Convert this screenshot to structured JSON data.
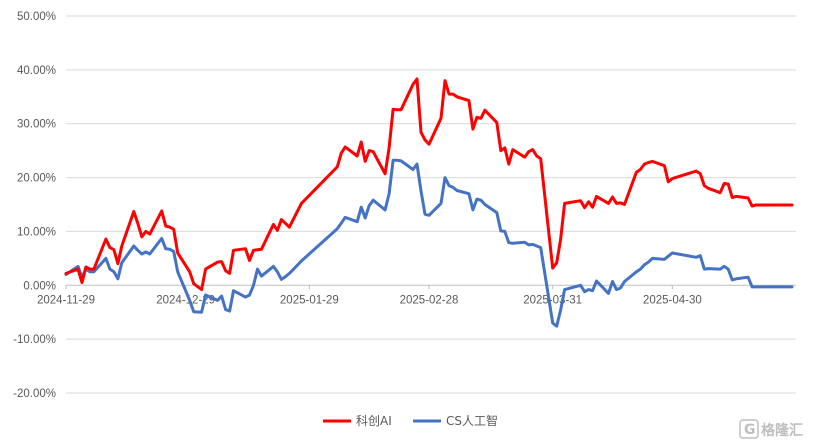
{
  "chart_data": {
    "type": "line",
    "title": "",
    "xlabel": "",
    "ylabel": "",
    "ylim": [
      -0.2,
      0.5
    ],
    "y_ticks": [
      "50.00%",
      "40.00%",
      "30.00%",
      "20.00%",
      "10.00%",
      "0.00%",
      "-10.00%",
      "-20.00%"
    ],
    "x_tick_labels": [
      "2024-11-29",
      "2024-12-29",
      "2025-01-29",
      "2025-02-28",
      "2025-03-31",
      "2025-04-30"
    ],
    "x_start": "2024-11-29",
    "x_end": "2025-05-31",
    "grid": "horizontal",
    "legend_position": "bottom",
    "series": [
      {
        "name": "科创AI",
        "color": "#ff0000",
        "x": [
          "2024-11-29",
          "2024-12-02",
          "2024-12-03",
          "2024-12-04",
          "2024-12-05",
          "2024-12-06",
          "2024-12-09",
          "2024-12-10",
          "2024-12-11",
          "2024-12-12",
          "2024-12-13",
          "2024-12-16",
          "2024-12-17",
          "2024-12-18",
          "2024-12-19",
          "2024-12-20",
          "2024-12-23",
          "2024-12-24",
          "2024-12-25",
          "2024-12-26",
          "2024-12-27",
          "2024-12-30",
          "2024-12-31",
          "2025-01-02",
          "2025-01-03",
          "2025-01-06",
          "2025-01-07",
          "2025-01-08",
          "2025-01-09",
          "2025-01-10",
          "2025-01-13",
          "2025-01-14",
          "2025-01-15",
          "2025-01-16",
          "2025-01-17",
          "2025-01-20",
          "2025-01-21",
          "2025-01-22",
          "2025-01-23",
          "2025-01-24",
          "2025-01-27",
          "2025-02-05",
          "2025-02-06",
          "2025-02-07",
          "2025-02-10",
          "2025-02-11",
          "2025-02-12",
          "2025-02-13",
          "2025-02-14",
          "2025-02-17",
          "2025-02-18",
          "2025-02-19",
          "2025-02-20",
          "2025-02-21",
          "2025-02-24",
          "2025-02-25",
          "2025-02-26",
          "2025-02-27",
          "2025-02-28",
          "2025-03-03",
          "2025-03-04",
          "2025-03-05",
          "2025-03-06",
          "2025-03-07",
          "2025-03-10",
          "2025-03-11",
          "2025-03-12",
          "2025-03-13",
          "2025-03-14",
          "2025-03-17",
          "2025-03-18",
          "2025-03-19",
          "2025-03-20",
          "2025-03-21",
          "2025-03-24",
          "2025-03-25",
          "2025-03-26",
          "2025-03-27",
          "2025-03-28",
          "2025-03-31",
          "2025-04-01",
          "2025-04-02",
          "2025-04-03",
          "2025-04-07",
          "2025-04-08",
          "2025-04-09",
          "2025-04-10",
          "2025-04-11",
          "2025-04-14",
          "2025-04-15",
          "2025-04-16",
          "2025-04-17",
          "2025-04-18",
          "2025-04-21",
          "2025-04-22",
          "2025-04-23",
          "2025-04-24",
          "2025-04-25",
          "2025-04-28",
          "2025-04-29",
          "2025-04-30",
          "2025-05-06",
          "2025-05-07",
          "2025-05-08",
          "2025-05-09",
          "2025-05-12",
          "2025-05-13",
          "2025-05-14",
          "2025-05-15",
          "2025-05-16",
          "2025-05-19",
          "2025-05-20",
          "2025-05-21",
          "2025-05-22",
          "2025-05-23",
          "2025-05-26",
          "2025-05-27",
          "2025-05-28",
          "2025-05-29",
          "2025-05-30"
        ],
        "y": [
          0.022,
          0.03,
          0.005,
          0.034,
          0.03,
          0.03,
          0.086,
          0.07,
          0.066,
          0.04,
          0.073,
          0.137,
          0.115,
          0.09,
          0.1,
          0.095,
          0.138,
          0.11,
          0.108,
          0.104,
          0.06,
          0.025,
          0.003,
          -0.008,
          0.03,
          0.043,
          0.044,
          0.027,
          0.022,
          0.065,
          0.068,
          0.046,
          0.065,
          0.066,
          0.067,
          0.113,
          0.102,
          0.122,
          0.115,
          0.108,
          0.152,
          0.22,
          0.245,
          0.257,
          0.24,
          0.266,
          0.23,
          0.25,
          0.248,
          0.207,
          0.255,
          0.327,
          0.326,
          0.326,
          0.373,
          0.383,
          0.284,
          0.27,
          0.262,
          0.31,
          0.38,
          0.355,
          0.355,
          0.35,
          0.343,
          0.29,
          0.312,
          0.31,
          0.325,
          0.302,
          0.25,
          0.255,
          0.225,
          0.252,
          0.238,
          0.248,
          0.252,
          0.24,
          0.235,
          0.032,
          0.042,
          0.085,
          0.152,
          0.157,
          0.144,
          0.155,
          0.145,
          0.165,
          0.152,
          0.164,
          0.152,
          0.153,
          0.15,
          0.21,
          0.215,
          0.225,
          0.228,
          0.23,
          0.222,
          0.192,
          0.198,
          0.212,
          0.207,
          0.185,
          0.18,
          0.172,
          0.189,
          0.188,
          0.163,
          0.165,
          0.162,
          0.147,
          0.149,
          0.149,
          0.149,
          0.149,
          0.149,
          0.149,
          0.149,
          0.149
        ],
        "note": ""
      },
      {
        "name": "CS人工智",
        "color": "#4472c4",
        "x": [
          "2024-11-29",
          "2024-12-02",
          "2024-12-03",
          "2024-12-04",
          "2024-12-05",
          "2024-12-06",
          "2024-12-09",
          "2024-12-10",
          "2024-12-11",
          "2024-12-12",
          "2024-12-13",
          "2024-12-16",
          "2024-12-17",
          "2024-12-18",
          "2024-12-19",
          "2024-12-20",
          "2024-12-23",
          "2024-12-24",
          "2024-12-25",
          "2024-12-26",
          "2024-12-27",
          "2024-12-30",
          "2024-12-31",
          "2025-01-02",
          "2025-01-03",
          "2025-01-06",
          "2025-01-07",
          "2025-01-08",
          "2025-01-09",
          "2025-01-10",
          "2025-01-13",
          "2025-01-14",
          "2025-01-15",
          "2025-01-16",
          "2025-01-17",
          "2025-01-20",
          "2025-01-21",
          "2025-01-22",
          "2025-01-23",
          "2025-01-24",
          "2025-01-27",
          "2025-02-05",
          "2025-02-06",
          "2025-02-07",
          "2025-02-10",
          "2025-02-11",
          "2025-02-12",
          "2025-02-13",
          "2025-02-14",
          "2025-02-17",
          "2025-02-18",
          "2025-02-19",
          "2025-02-20",
          "2025-02-21",
          "2025-02-24",
          "2025-02-25",
          "2025-02-26",
          "2025-02-27",
          "2025-02-28",
          "2025-03-03",
          "2025-03-04",
          "2025-03-05",
          "2025-03-06",
          "2025-03-07",
          "2025-03-10",
          "2025-03-11",
          "2025-03-12",
          "2025-03-13",
          "2025-03-14",
          "2025-03-17",
          "2025-03-18",
          "2025-03-19",
          "2025-03-20",
          "2025-03-21",
          "2025-03-24",
          "2025-03-25",
          "2025-03-26",
          "2025-03-27",
          "2025-03-28",
          "2025-03-31",
          "2025-04-01",
          "2025-04-02",
          "2025-04-03",
          "2025-04-07",
          "2025-04-08",
          "2025-04-09",
          "2025-04-10",
          "2025-04-11",
          "2025-04-14",
          "2025-04-15",
          "2025-04-16",
          "2025-04-17",
          "2025-04-18",
          "2025-04-21",
          "2025-04-22",
          "2025-04-23",
          "2025-04-24",
          "2025-04-25",
          "2025-04-28",
          "2025-04-29",
          "2025-04-30",
          "2025-05-06",
          "2025-05-07",
          "2025-05-08",
          "2025-05-09",
          "2025-05-12",
          "2025-05-13",
          "2025-05-14",
          "2025-05-15",
          "2025-05-16",
          "2025-05-19",
          "2025-05-20",
          "2025-05-21",
          "2025-05-22",
          "2025-05-23",
          "2025-05-26",
          "2025-05-27",
          "2025-05-28",
          "2025-05-29",
          "2025-05-30"
        ],
        "y": [
          0.02,
          0.035,
          0.015,
          0.03,
          0.025,
          0.025,
          0.05,
          0.03,
          0.025,
          0.012,
          0.042,
          0.073,
          0.065,
          0.058,
          0.062,
          0.058,
          0.087,
          0.068,
          0.067,
          0.063,
          0.025,
          -0.028,
          -0.049,
          -0.05,
          -0.018,
          -0.028,
          -0.02,
          -0.045,
          -0.048,
          -0.01,
          -0.022,
          -0.018,
          0.0,
          0.03,
          0.017,
          0.035,
          0.025,
          0.011,
          0.016,
          0.022,
          0.045,
          0.105,
          0.115,
          0.126,
          0.118,
          0.145,
          0.125,
          0.148,
          0.158,
          0.14,
          0.17,
          0.232,
          0.232,
          0.231,
          0.215,
          0.225,
          0.175,
          0.132,
          0.13,
          0.152,
          0.2,
          0.185,
          0.182,
          0.176,
          0.17,
          0.14,
          0.16,
          0.158,
          0.15,
          0.135,
          0.101,
          0.1,
          0.079,
          0.078,
          0.08,
          0.075,
          0.076,
          0.073,
          0.07,
          -0.07,
          -0.076,
          -0.046,
          -0.008,
          0.0,
          -0.012,
          -0.008,
          -0.01,
          0.008,
          -0.015,
          0.007,
          -0.008,
          -0.005,
          0.007,
          0.025,
          0.03,
          0.038,
          0.043,
          0.05,
          0.048,
          0.054,
          0.06,
          0.052,
          0.055,
          0.03,
          0.031,
          0.03,
          0.035,
          0.03,
          0.01,
          0.012,
          0.015,
          -0.003,
          -0.003,
          -0.003,
          -0.003,
          -0.003,
          -0.003,
          -0.003,
          -0.003,
          -0.003
        ],
        "note": ""
      }
    ]
  },
  "watermark": {
    "label": "格隆汇"
  }
}
